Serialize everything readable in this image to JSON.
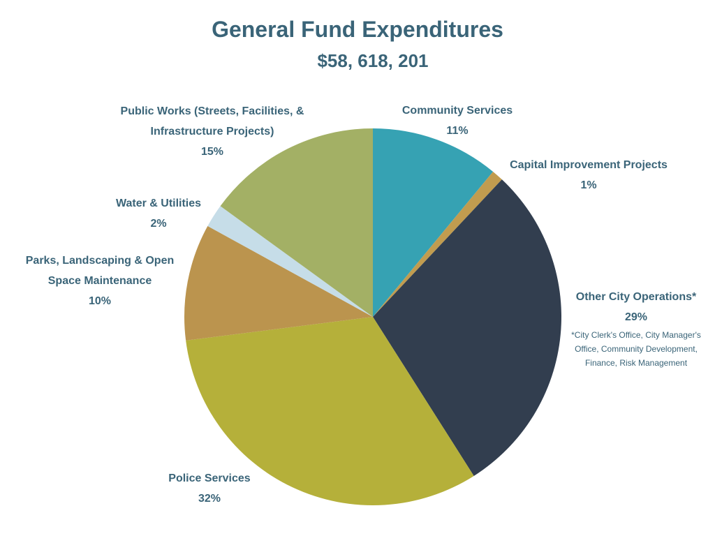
{
  "chart_data": {
    "type": "pie",
    "title": "General Fund Expenditures",
    "subtitle": "$58, 618, 201",
    "categories": [
      "Community Services",
      "Capital Improvement Projects",
      "Other City Operations*",
      "Police Services",
      "Parks, Landscaping & Open Space Maintenance",
      "Water & Utilities",
      "Public Works (Streets, Facilities, & Infrastructure Projects)"
    ],
    "values": [
      11,
      1,
      29,
      32,
      10,
      2,
      15
    ],
    "value_labels": [
      "11%",
      "1%",
      "29%",
      "32%",
      "10%",
      "2%",
      "15%"
    ],
    "colors": [
      "#36a2b3",
      "#c19c4f",
      "#323e4f",
      "#b5b03a",
      "#bb944e",
      "#c6dde8",
      "#a3b065"
    ],
    "annotation": "*City Clerk's Office, City Manager's Office, Community Development, Finance, Risk Management"
  }
}
